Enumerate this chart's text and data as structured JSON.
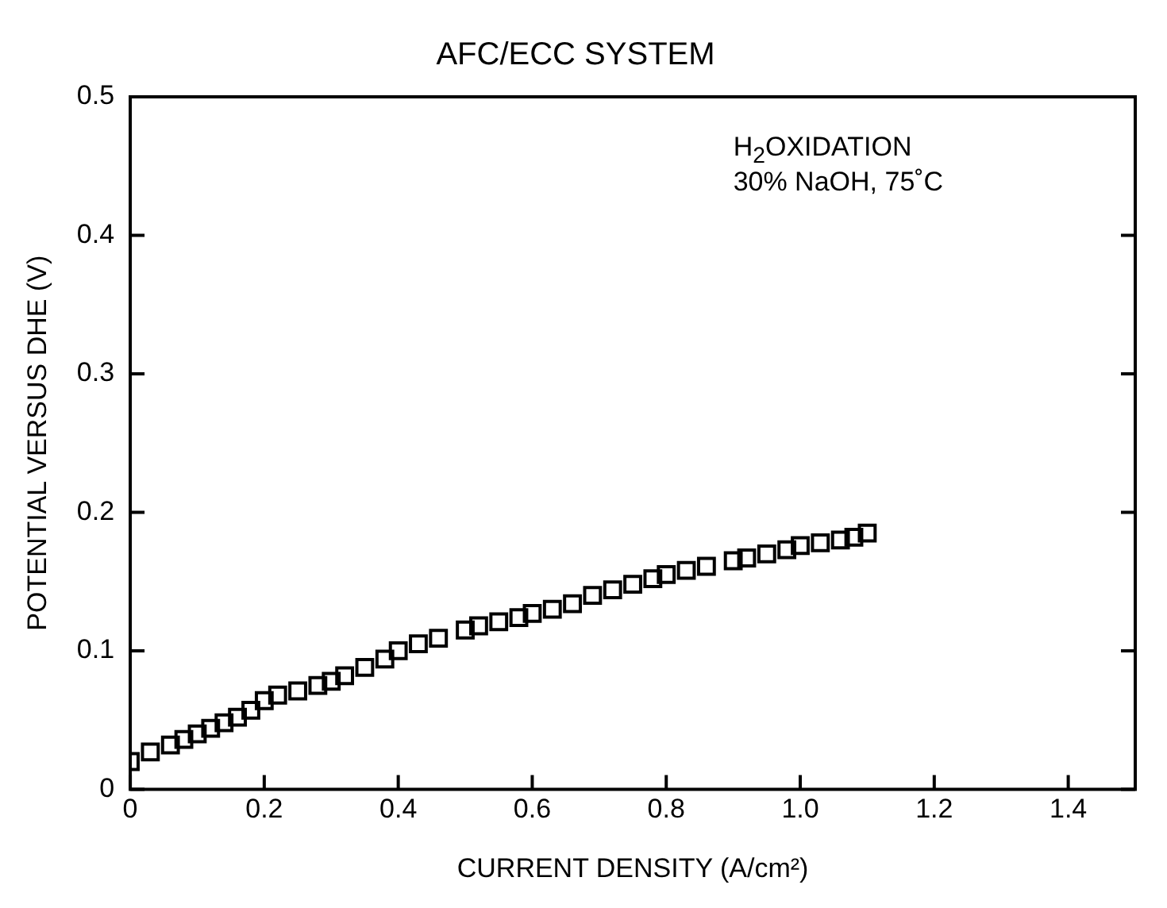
{
  "chart_data": {
    "type": "scatter",
    "title": "AFC/ECC SYSTEM",
    "xlabel": "CURRENT DENSITY (A/cm²)",
    "ylabel": "POTENTIAL VERSUS DHE (V)",
    "annotations": [
      "H$_{2}$OXIDATION",
      "30% NaOH, 75˚C"
    ],
    "marker": "square",
    "grid": false,
    "legend": false,
    "xlim": [
      0,
      1.5
    ],
    "xticks": [
      0,
      0.2,
      0.4,
      0.6,
      0.8,
      {
        "value": 1,
        "label": "1.0"
      },
      1.2,
      1.4
    ],
    "ylim": [
      0,
      0.5
    ],
    "yticks": [
      0,
      0.1,
      0.2,
      0.3,
      0.4,
      0.5
    ],
    "series": [
      {
        "color": "#000000",
        "x": [
          0,
          0.03,
          0.06,
          0.08,
          0.1,
          0.12,
          0.14,
          0.16,
          0.18,
          0.2,
          0.22,
          0.25,
          0.28,
          0.3,
          0.32,
          0.35,
          0.38,
          0.4,
          0.43,
          0.46,
          0.5,
          0.52,
          0.55,
          0.58,
          0.6,
          0.63,
          0.66,
          0.69,
          0.72,
          0.75,
          0.78,
          0.8,
          0.83,
          0.86,
          0.9,
          0.92,
          0.95,
          0.98,
          1.0,
          1.03,
          1.06,
          1.08,
          1.1
        ],
        "values": [
          0.02,
          0.027,
          0.032,
          0.036,
          0.04,
          0.044,
          0.048,
          0.052,
          0.057,
          0.064,
          0.068,
          0.071,
          0.075,
          0.078,
          0.082,
          0.088,
          0.094,
          0.1,
          0.105,
          0.109,
          0.115,
          0.118,
          0.121,
          0.124,
          0.127,
          0.13,
          0.134,
          0.14,
          0.144,
          0.148,
          0.152,
          0.155,
          0.158,
          0.161,
          0.165,
          0.167,
          0.17,
          0.173,
          0.176,
          0.178,
          0.18,
          0.182,
          0.185
        ]
      }
    ]
  }
}
